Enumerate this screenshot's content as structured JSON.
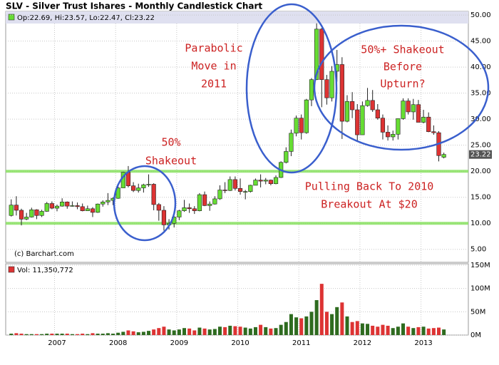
{
  "chart_data": {
    "type": "candlestick",
    "title": "SLV - Silver Trust Ishares - Monthly Candlestick Chart",
    "legend": "Op:22.69, Hi:23.57, Lo:22.47, Cl:23.22",
    "volume_legend": "Vol: 11,350,772",
    "source": "(c) Barchart.com",
    "categories": [
      null,
      null,
      null,
      null,
      null,
      null,
      null,
      null,
      null,
      "2007",
      null,
      null,
      null,
      null,
      null,
      null,
      null,
      null,
      null,
      null,
      null,
      "2008",
      null,
      null,
      null,
      null,
      null,
      null,
      null,
      null,
      null,
      null,
      null,
      "2009",
      null,
      null,
      null,
      null,
      null,
      null,
      null,
      null,
      null,
      null,
      null,
      "2010",
      null,
      null,
      null,
      null,
      null,
      null,
      null,
      null,
      null,
      null,
      null,
      "2011",
      null,
      null,
      null,
      null,
      null,
      null,
      null,
      null,
      null,
      null,
      null,
      "2012",
      null,
      null,
      null,
      null,
      null,
      null,
      null,
      null,
      null,
      null,
      null,
      "2013",
      null,
      null,
      null,
      null
    ],
    "open": [
      11.5,
      13.5,
      12.5,
      10.8,
      11.2,
      12.6,
      11.5,
      12.3,
      13.8,
      12.9,
      13.3,
      14.1,
      13.3,
      13.4,
      13.2,
      12.4,
      12.8,
      12.1,
      13.7,
      14.1,
      14.4,
      14.8,
      16.8,
      19.8,
      17.2,
      16.3,
      16.8,
      17.4,
      17.5,
      13.6,
      12.5,
      9.7,
      10.0,
      11.2,
      12.4,
      13.0,
      12.8,
      12.4,
      15.5,
      13.4,
      13.7,
      14.7,
      16.4,
      16.3,
      18.4,
      16.7,
      16.1,
      16.1,
      17.3,
      18.3,
      18.1,
      18.3,
      17.6,
      18.8,
      21.7,
      23.8,
      27.3,
      30.2,
      27.4,
      33.7,
      37.6,
      47.3,
      37.6,
      34.1,
      39.2,
      40.5,
      29.6,
      33.4,
      31.8,
      27.0,
      32.6,
      33.6,
      31.8,
      30.2,
      27.5,
      26.6,
      27.1,
      30.1,
      33.5,
      31.4,
      32.8,
      29.4,
      30.4,
      27.6,
      27.4,
      22.69
    ],
    "high": [
      14.6,
      15.2,
      12.8,
      12.0,
      13.0,
      12.7,
      12.6,
      14.1,
      14.2,
      13.6,
      14.8,
      14.2,
      14.2,
      14.0,
      13.8,
      13.4,
      13.1,
      13.8,
      14.4,
      15.8,
      15.0,
      17.3,
      19.9,
      21.0,
      17.9,
      17.6,
      17.6,
      19.4,
      17.7,
      13.9,
      13.3,
      10.8,
      11.4,
      12.6,
      14.5,
      13.8,
      13.3,
      15.8,
      16.1,
      14.2,
      15.2,
      17.3,
      17.9,
      19.0,
      19.0,
      18.6,
      16.4,
      17.4,
      18.6,
      19.4,
      18.7,
      18.4,
      19.2,
      21.9,
      24.6,
      28.0,
      30.7,
      30.9,
      33.9,
      37.9,
      48.4,
      47.5,
      38.5,
      40.2,
      43.3,
      41.9,
      34.6,
      35.2,
      32.9,
      33.4,
      36.0,
      35.6,
      32.9,
      30.9,
      28.8,
      27.8,
      30.1,
      34.0,
      34.0,
      33.9,
      33.7,
      31.8,
      31.3,
      28.8,
      27.7,
      23.57
    ],
    "low": [
      11.3,
      11.5,
      9.6,
      10.6,
      11.1,
      10.8,
      11.2,
      12.2,
      12.7,
      12.3,
      13.2,
      12.8,
      13.2,
      12.7,
      12.3,
      12.4,
      11.2,
      12.0,
      13.2,
      13.5,
      13.5,
      14.7,
      16.8,
      16.9,
      16.0,
      15.9,
      15.9,
      17.0,
      12.5,
      10.5,
      8.6,
      8.8,
      9.2,
      10.6,
      12.2,
      12.0,
      11.8,
      12.3,
      13.3,
      12.4,
      13.6,
      14.5,
      15.8,
      16.2,
      16.3,
      15.5,
      14.6,
      15.9,
      17.3,
      16.9,
      17.5,
      17.3,
      17.5,
      18.7,
      21.5,
      22.9,
      26.7,
      26.1,
      27.2,
      32.5,
      37.5,
      32.3,
      32.8,
      33.4,
      37.2,
      26.2,
      29.4,
      30.2,
      25.9,
      27.0,
      32.4,
      31.4,
      29.9,
      26.1,
      25.9,
      25.9,
      26.1,
      29.9,
      30.9,
      29.9,
      29.4,
      29.2,
      27.5,
      27.0,
      21.9,
      22.47
    ],
    "close": [
      13.5,
      12.5,
      10.8,
      11.2,
      12.6,
      11.5,
      12.3,
      13.8,
      12.9,
      13.3,
      14.1,
      13.3,
      13.4,
      13.2,
      12.4,
      12.8,
      12.1,
      13.7,
      14.1,
      14.4,
      14.8,
      16.8,
      19.8,
      17.2,
      16.3,
      16.8,
      17.4,
      17.5,
      13.6,
      12.5,
      9.7,
      10.0,
      11.2,
      12.4,
      13.0,
      12.8,
      12.4,
      15.5,
      13.4,
      13.7,
      14.7,
      16.4,
      16.3,
      18.4,
      16.7,
      16.1,
      16.1,
      17.3,
      18.3,
      18.1,
      18.3,
      17.6,
      18.8,
      21.7,
      23.8,
      27.3,
      30.2,
      27.4,
      33.7,
      37.6,
      47.3,
      37.6,
      34.1,
      39.2,
      40.5,
      29.6,
      33.4,
      31.8,
      27.0,
      32.6,
      33.6,
      31.8,
      30.2,
      27.5,
      26.6,
      27.1,
      30.1,
      33.5,
      31.4,
      32.8,
      29.4,
      30.4,
      27.6,
      27.4,
      23.0,
      23.22
    ],
    "volume": [
      3,
      4,
      3,
      2,
      2,
      2,
      2,
      3,
      3,
      3,
      3,
      3,
      2,
      2,
      3,
      2,
      4,
      3,
      3,
      4,
      3,
      5,
      7,
      10,
      8,
      6,
      7,
      9,
      12,
      15,
      18,
      12,
      10,
      12,
      15,
      14,
      10,
      16,
      14,
      12,
      13,
      18,
      17,
      20,
      19,
      18,
      16,
      14,
      17,
      22,
      17,
      14,
      15,
      22,
      28,
      45,
      38,
      36,
      40,
      50,
      75,
      110,
      50,
      45,
      60,
      70,
      40,
      28,
      30,
      25,
      24,
      20,
      18,
      22,
      20,
      15,
      18,
      25,
      18,
      15,
      17,
      18,
      14,
      15,
      16,
      12
    ],
    "up_color": "#66dd33",
    "down_color": "#dd3333",
    "ylim": [
      2.5,
      50.7
    ],
    "yticks": [
      {
        "value": 5,
        "label": "5.00"
      },
      {
        "value": 10,
        "label": "10.00"
      },
      {
        "value": 15,
        "label": "15.00"
      },
      {
        "value": 20,
        "label": "20.00"
      },
      {
        "value": 25,
        "label": "25.00"
      },
      {
        "value": 30,
        "label": "30.00"
      },
      {
        "value": 35,
        "label": "35.00"
      },
      {
        "value": 40,
        "label": "40.00"
      },
      {
        "value": 45,
        "label": "45.00"
      },
      {
        "value": 50,
        "label": "50.00"
      }
    ],
    "y2lim": [
      0,
      150
    ],
    "y2ticks": [
      {
        "value": 0,
        "label": "0M"
      },
      {
        "value": 50,
        "label": "50M"
      },
      {
        "value": 100,
        "label": "100M"
      },
      {
        "value": 150,
        "label": "150M"
      }
    ],
    "hlines": [
      {
        "value": 20,
        "color": "#88e060"
      },
      {
        "value": 10,
        "color": "#88e060"
      }
    ],
    "grid": true,
    "annotations": [
      {
        "lines": [
          "Parabolic",
          "Move in",
          "2011"
        ]
      },
      {
        "lines": [
          "50%+ Shakeout",
          "Before",
          "Upturn?"
        ]
      },
      {
        "lines": [
          "50%",
          "Shakeout"
        ]
      },
      {
        "lines": [
          "Pulling Back To 2010",
          "Breakout At $20"
        ]
      }
    ]
  }
}
